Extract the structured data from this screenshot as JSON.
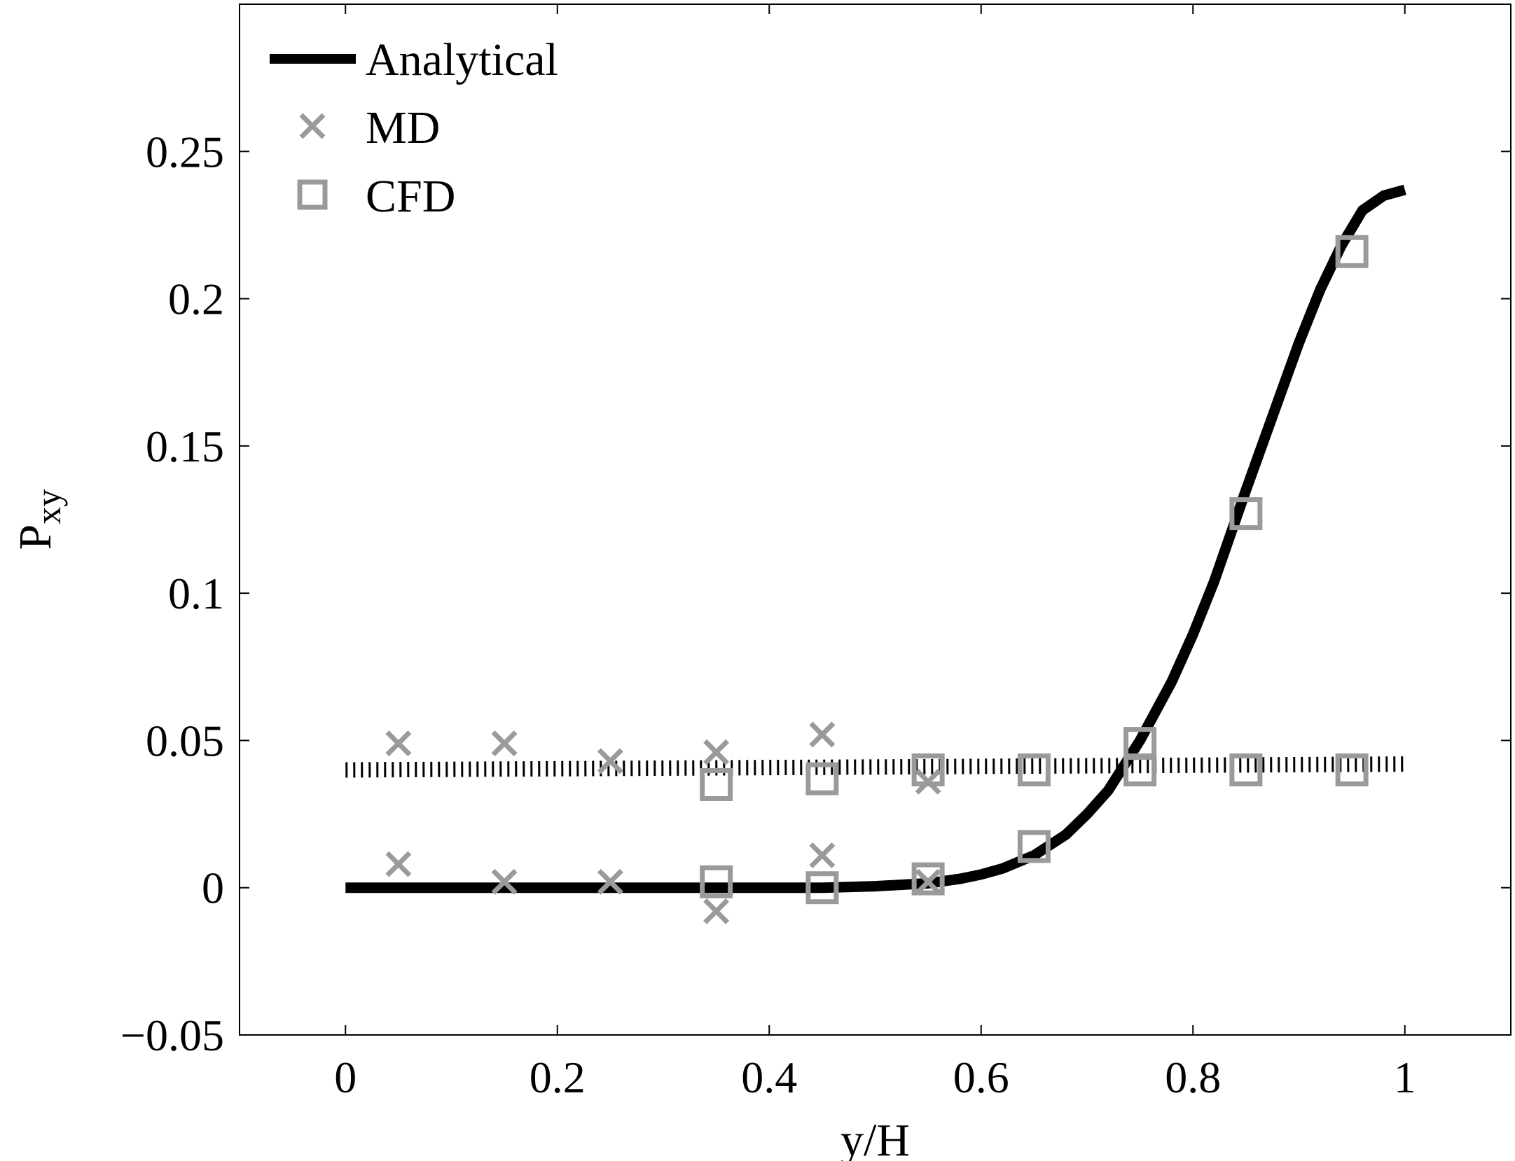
{
  "chart_data": {
    "type": "line",
    "xlabel": "y/H",
    "ylabel": {
      "main": "P",
      "sub": "xy"
    },
    "xlim": [
      -0.1,
      1.1
    ],
    "ylim": [
      -0.05,
      0.3
    ],
    "xticks": [
      0,
      0.2,
      0.4,
      0.6,
      0.8,
      1
    ],
    "xtick_labels": [
      "0",
      "0.2",
      "0.4",
      "0.6",
      "0.8",
      "1"
    ],
    "yticks": [
      -0.05,
      0,
      0.05,
      0.1,
      0.15,
      0.2,
      0.25
    ],
    "ytick_labels": [
      "−0.05",
      "0",
      "0.05",
      "0.1",
      "0.15",
      "0.2",
      "0.25"
    ],
    "grid": false,
    "legend_position": "top-left",
    "colors": {
      "analytical": "#000000",
      "markers": "#9a9a9a",
      "reference": "#000000"
    },
    "series": [
      {
        "name": "Analytical",
        "style": "thick-solid-line",
        "x": [
          0,
          0.1,
          0.2,
          0.3,
          0.4,
          0.45,
          0.5,
          0.55,
          0.58,
          0.6,
          0.62,
          0.65,
          0.68,
          0.7,
          0.72,
          0.75,
          0.78,
          0.8,
          0.82,
          0.85,
          0.88,
          0.9,
          0.92,
          0.94,
          0.96,
          0.98,
          1.0
        ],
        "y": [
          0,
          0,
          0,
          0,
          0,
          0,
          0.0005,
          0.0015,
          0.003,
          0.0045,
          0.0065,
          0.011,
          0.018,
          0.025,
          0.033,
          0.05,
          0.07,
          0.086,
          0.104,
          0.135,
          0.165,
          0.185,
          0.203,
          0.218,
          0.23,
          0.235,
          0.237
        ]
      },
      {
        "name": "MD",
        "style": "x-marker",
        "x": [
          0.05,
          0.15,
          0.25,
          0.35,
          0.45,
          0.55,
          0.05,
          0.15,
          0.25,
          0.35,
          0.45,
          0.55
        ],
        "y": [
          0.049,
          0.049,
          0.043,
          0.046,
          0.052,
          0.036,
          0.008,
          0.002,
          0.002,
          -0.008,
          0.011,
          0.002
        ]
      },
      {
        "name": "CFD",
        "style": "square-marker",
        "x": [
          0.35,
          0.45,
          0.55,
          0.65,
          0.75,
          0.85,
          0.95,
          0.35,
          0.45,
          0.55,
          0.65,
          0.75,
          0.85,
          0.95
        ],
        "y": [
          0.035,
          0.037,
          0.04,
          0.04,
          0.04,
          0.04,
          0.04,
          0.002,
          0,
          0.003,
          0.014,
          0.049,
          0.127,
          0.216
        ]
      },
      {
        "style": "dotted-reference-line",
        "x": [
          0,
          1
        ],
        "y": [
          0.04,
          0.042
        ]
      }
    ]
  }
}
